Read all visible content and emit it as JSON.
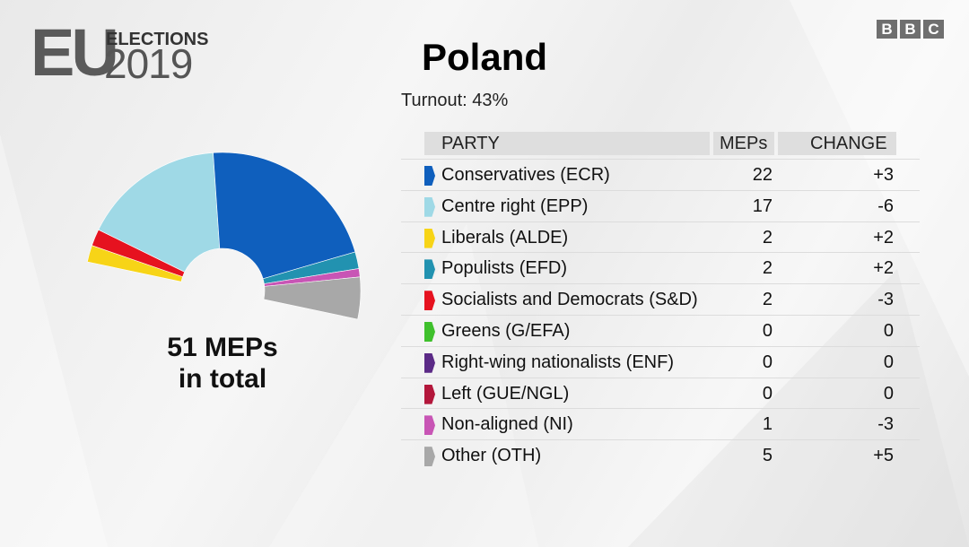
{
  "logo": {
    "eu": "EU",
    "elections": "ELECTIONS",
    "year": "2019"
  },
  "broadcaster": [
    "B",
    "B",
    "C"
  ],
  "country": "Poland",
  "turnout": "Turnout: 43%",
  "total": {
    "line1": "51 MEPs",
    "line2": "in total"
  },
  "table": {
    "headers": {
      "party": "PARTY",
      "meps": "MEPs",
      "change": "CHANGE"
    }
  },
  "chart_data": {
    "type": "pie",
    "subtype": "half-donut (hemicycle)",
    "total_seats": 51,
    "series": [
      {
        "party": "Conservatives (ECR)",
        "meps": 22,
        "change": "+3",
        "color": "#0f5fbd"
      },
      {
        "party": "Centre right (EPP)",
        "meps": 17,
        "change": "-6",
        "color": "#9fd9e6"
      },
      {
        "party": "Liberals (ALDE)",
        "meps": 2,
        "change": "+2",
        "color": "#f7d417"
      },
      {
        "party": "Populists (EFD)",
        "meps": 2,
        "change": "+2",
        "color": "#2292b0"
      },
      {
        "party": "Socialists and Democrats (S&D)",
        "meps": 2,
        "change": "-3",
        "color": "#e6121f"
      },
      {
        "party": "Greens (G/EFA)",
        "meps": 0,
        "change": "0",
        "color": "#3fc02c"
      },
      {
        "party": "Right-wing nationalists (ENF)",
        "meps": 0,
        "change": "0",
        "color": "#5b2a86"
      },
      {
        "party": "Left (GUE/NGL)",
        "meps": 0,
        "change": "0",
        "color": "#b3173b"
      },
      {
        "party": "Non-aligned (NI)",
        "meps": 1,
        "change": "-3",
        "color": "#c855b5"
      },
      {
        "party": "Other (OTH)",
        "meps": 5,
        "change": "+5",
        "color": "#a8a8a8"
      }
    ],
    "chart_order": [
      "Liberals (ALDE)",
      "Socialists and Democrats (S&D)",
      "Centre right (EPP)",
      "Conservatives (ECR)",
      "Populists (EFD)",
      "Non-aligned (NI)",
      "Other (OTH)"
    ]
  }
}
